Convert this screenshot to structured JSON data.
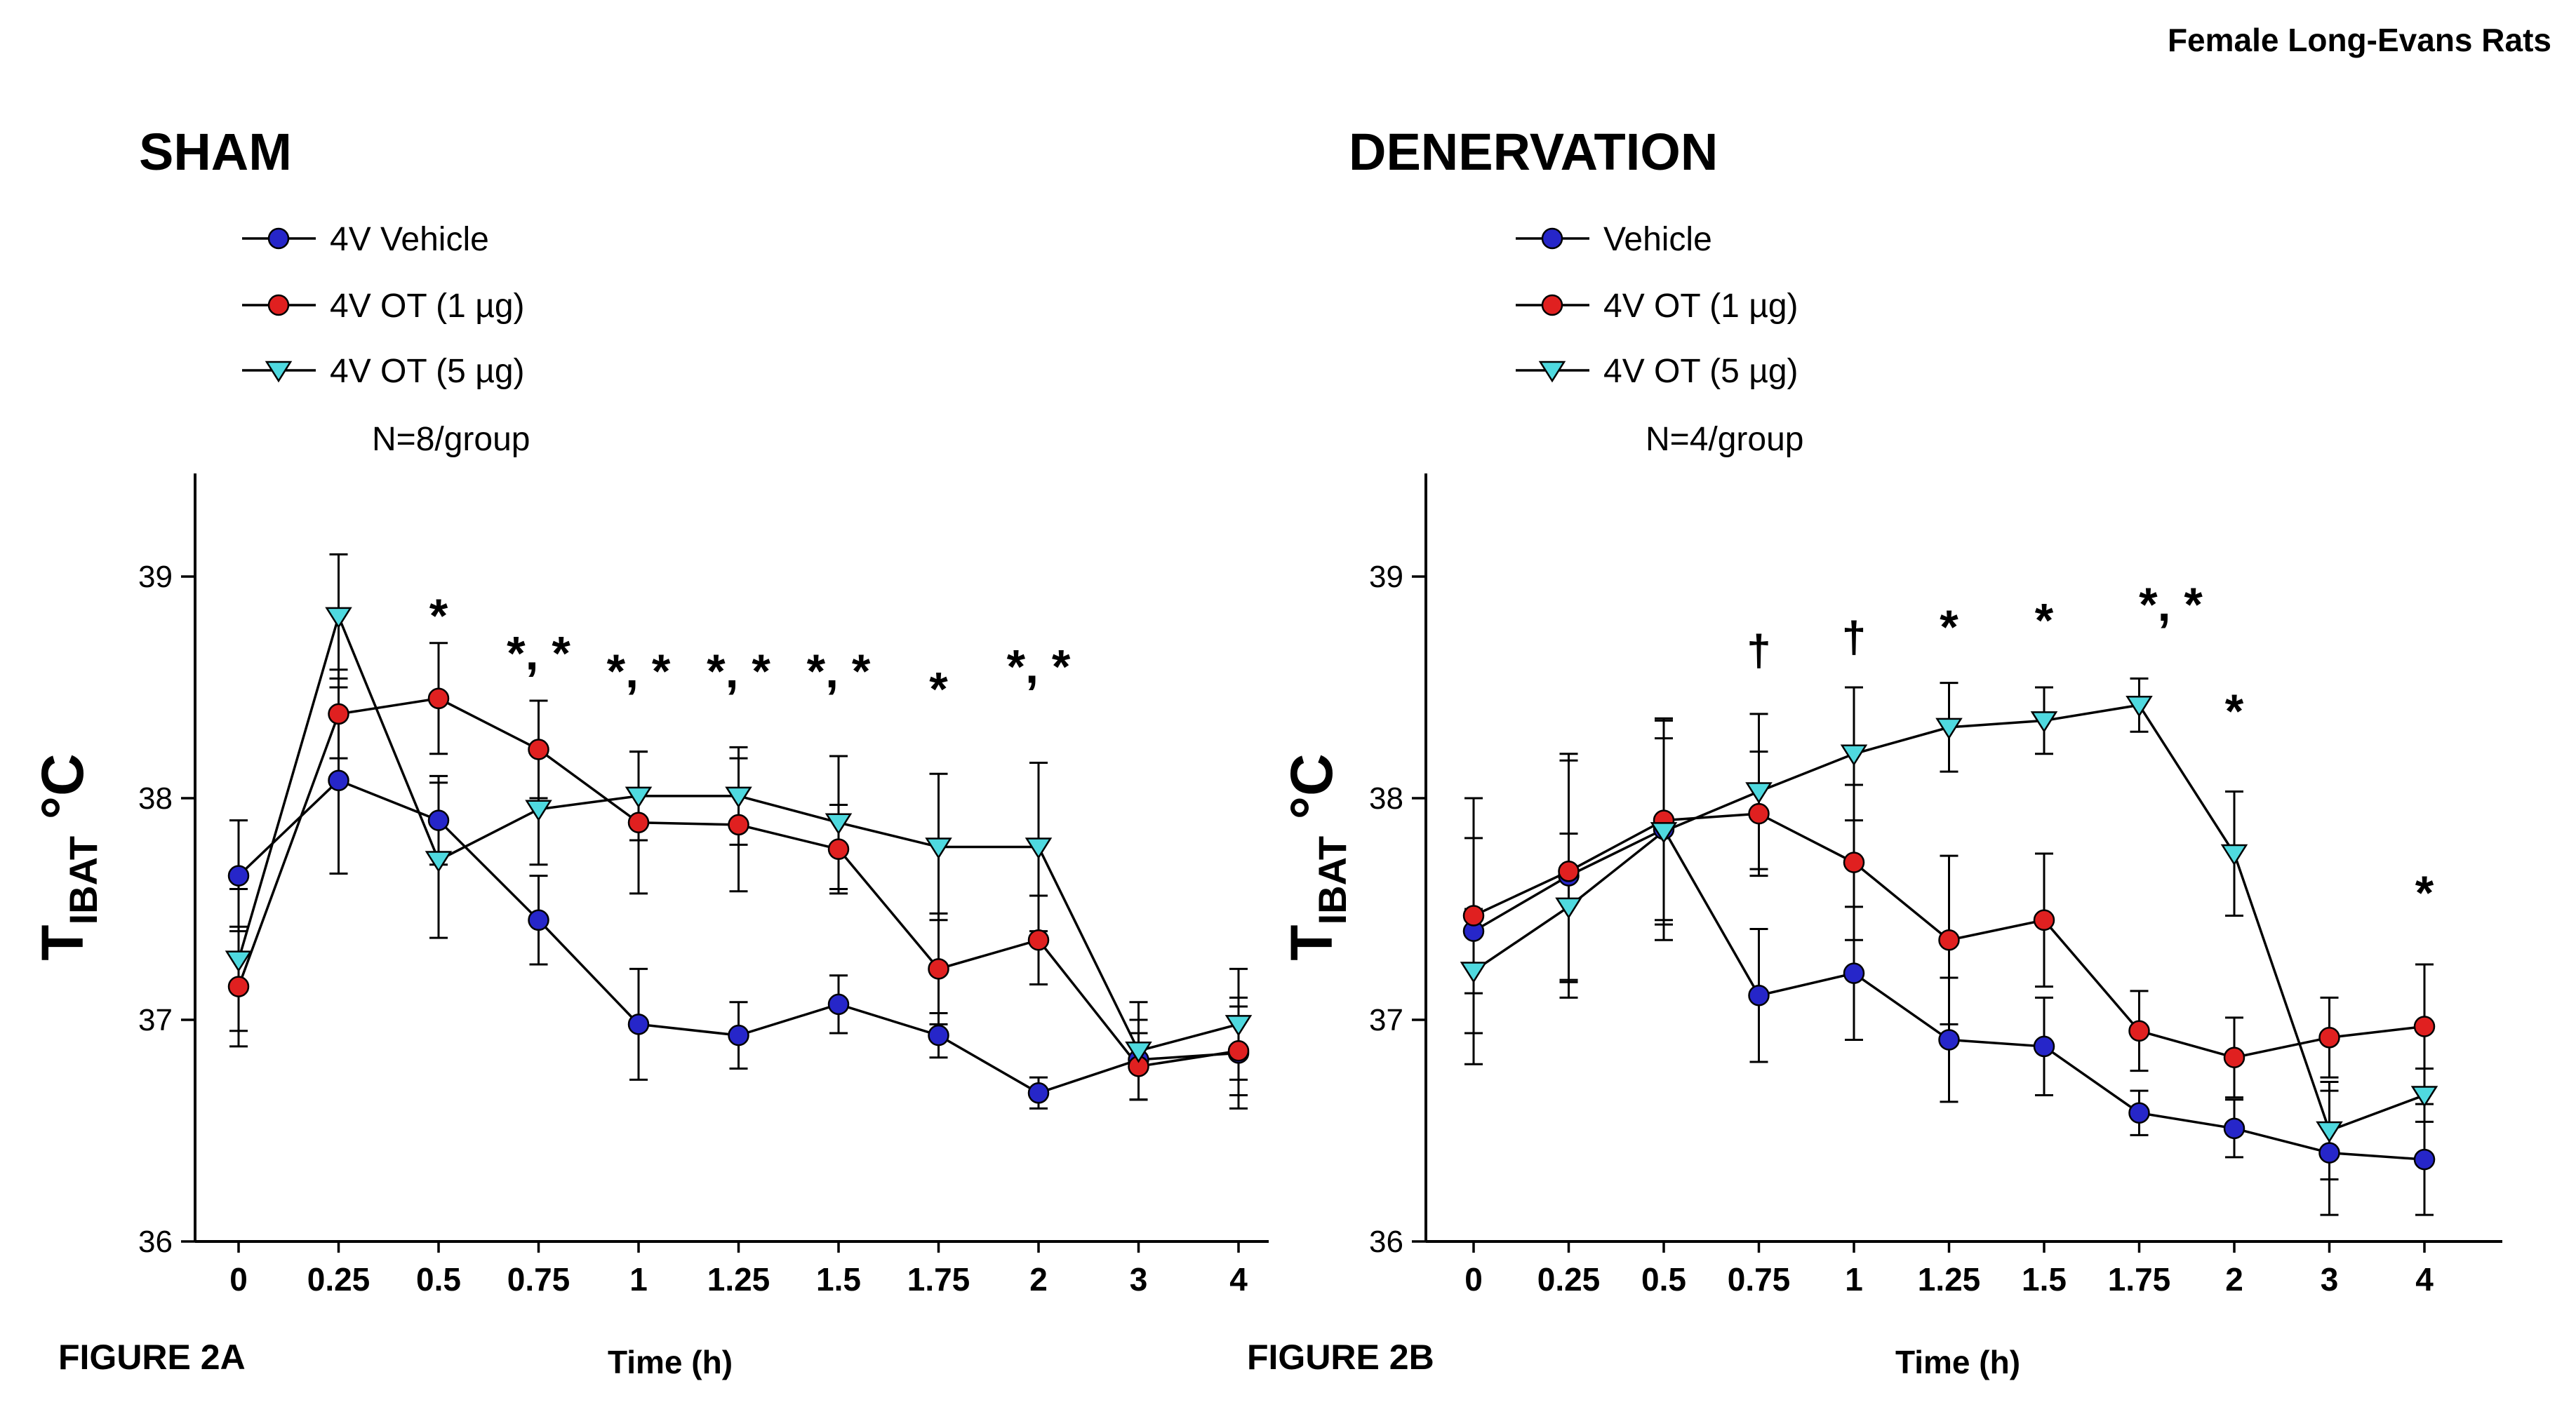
{
  "header": {
    "title": "Female Long-Evans Rats"
  },
  "chart_data": [
    {
      "id": "sham",
      "type": "line",
      "title": "SHAM",
      "figure_label": "FIGURE 2A",
      "xlabel": "Time (h)",
      "ylabel": {
        "main": "T",
        "sub": "IBAT",
        "unit": " °C"
      },
      "legend_note": "N=8/group",
      "legend_position": "top-left",
      "grid": false,
      "x_categories": [
        "0",
        "0.25",
        "0.5",
        "0.75",
        "1",
        "1.25",
        "1.5",
        "1.75",
        "2",
        "3",
        "4"
      ],
      "yticks": [
        "36",
        "37",
        "38",
        "39"
      ],
      "ylim": [
        36,
        39.45
      ],
      "series": [
        {
          "name": "4V Vehicle",
          "marker": "circle",
          "color": "#2626c9",
          "values": [
            37.65,
            38.08,
            37.9,
            37.45,
            36.98,
            36.93,
            37.07,
            36.93,
            36.67,
            36.82,
            36.85
          ],
          "errors": [
            0.25,
            0.42,
            0.2,
            0.2,
            0.25,
            0.15,
            0.13,
            0.1,
            0.07,
            0.18,
            0.25
          ]
        },
        {
          "name": "4V OT (1 µg)",
          "marker": "circle",
          "color": "#e02020",
          "values": [
            37.15,
            38.38,
            38.45,
            38.22,
            37.89,
            37.88,
            37.77,
            37.23,
            37.36,
            36.79,
            36.86
          ],
          "errors": [
            0.27,
            0.2,
            0.25,
            0.22,
            0.32,
            0.3,
            0.2,
            0.25,
            0.2,
            0.15,
            0.2
          ]
        },
        {
          "name": "4V OT (5 µg)",
          "marker": "triangle-down",
          "color": "#4fd9df",
          "values": [
            37.27,
            38.82,
            37.72,
            37.95,
            38.01,
            38.01,
            37.89,
            37.78,
            37.78,
            36.86,
            36.98
          ],
          "errors": [
            0.32,
            0.28,
            0.35,
            0.25,
            0.2,
            0.22,
            0.3,
            0.33,
            0.38,
            0.22,
            0.25
          ]
        }
      ],
      "annotations": [
        {
          "x": "0.5",
          "y": 38.75,
          "text": "*"
        },
        {
          "x": "0.75",
          "y": 38.58,
          "text": "*, *"
        },
        {
          "x": "1",
          "y": 38.5,
          "text": "*, *"
        },
        {
          "x": "1.25",
          "y": 38.5,
          "text": "*, *"
        },
        {
          "x": "1.5",
          "y": 38.5,
          "text": "*, *"
        },
        {
          "x": "1.75",
          "y": 38.42,
          "text": "*"
        },
        {
          "x": "2",
          "y": 38.52,
          "text": "*, *"
        }
      ]
    },
    {
      "id": "denervation",
      "type": "line",
      "title": "DENERVATION",
      "figure_label": "FIGURE 2B",
      "xlabel": "Time (h)",
      "ylabel": {
        "main": "T",
        "sub": "IBAT",
        "unit": " °C"
      },
      "legend_note": "N=4/group",
      "legend_position": "top-left",
      "grid": false,
      "x_categories": [
        "0",
        "0.25",
        "0.5",
        "0.75",
        "1",
        "1.25",
        "1.5",
        "1.75",
        "2",
        "3",
        "4"
      ],
      "yticks": [
        "36",
        "37",
        "38",
        "39"
      ],
      "ylim": [
        36,
        39.45
      ],
      "series": [
        {
          "name": "Vehicle",
          "marker": "circle",
          "color": "#2626c9",
          "values": [
            37.4,
            37.65,
            37.86,
            37.11,
            37.21,
            36.91,
            36.88,
            36.58,
            36.51,
            36.4,
            36.37
          ],
          "errors": [
            0.6,
            0.55,
            0.5,
            0.3,
            0.3,
            0.28,
            0.22,
            0.1,
            0.13,
            0.28,
            0.25
          ]
        },
        {
          "name": "4V OT (1 µg)",
          "marker": "circle",
          "color": "#e02020",
          "values": [
            37.47,
            37.67,
            37.9,
            37.93,
            37.71,
            37.36,
            37.45,
            36.95,
            36.83,
            36.92,
            36.97
          ],
          "errors": [
            0.35,
            0.5,
            0.45,
            0.28,
            0.35,
            0.38,
            0.3,
            0.18,
            0.18,
            0.18,
            0.28
          ]
        },
        {
          "name": "4V OT (5 µg)",
          "marker": "triangle-down",
          "color": "#4fd9df",
          "values": [
            37.22,
            37.51,
            37.85,
            38.03,
            38.2,
            38.32,
            38.35,
            38.42,
            37.75,
            36.5,
            36.66
          ],
          "errors": [
            0.28,
            0.33,
            0.42,
            0.35,
            0.3,
            0.2,
            0.15,
            0.12,
            0.28,
            0.22,
            0.12
          ]
        }
      ],
      "annotations": [
        {
          "x": "0.75",
          "y": 38.6,
          "text": "†"
        },
        {
          "x": "1",
          "y": 38.66,
          "text": "†"
        },
        {
          "x": "1.25",
          "y": 38.7,
          "text": "*"
        },
        {
          "x": "1.5",
          "y": 38.73,
          "text": "*"
        },
        {
          "x": "1.75",
          "y": 38.8,
          "text": "*, *",
          "dx": 45
        },
        {
          "x": "2",
          "y": 38.32,
          "text": "*"
        },
        {
          "x": "4",
          "y": 37.5,
          "text": "*"
        }
      ]
    }
  ]
}
